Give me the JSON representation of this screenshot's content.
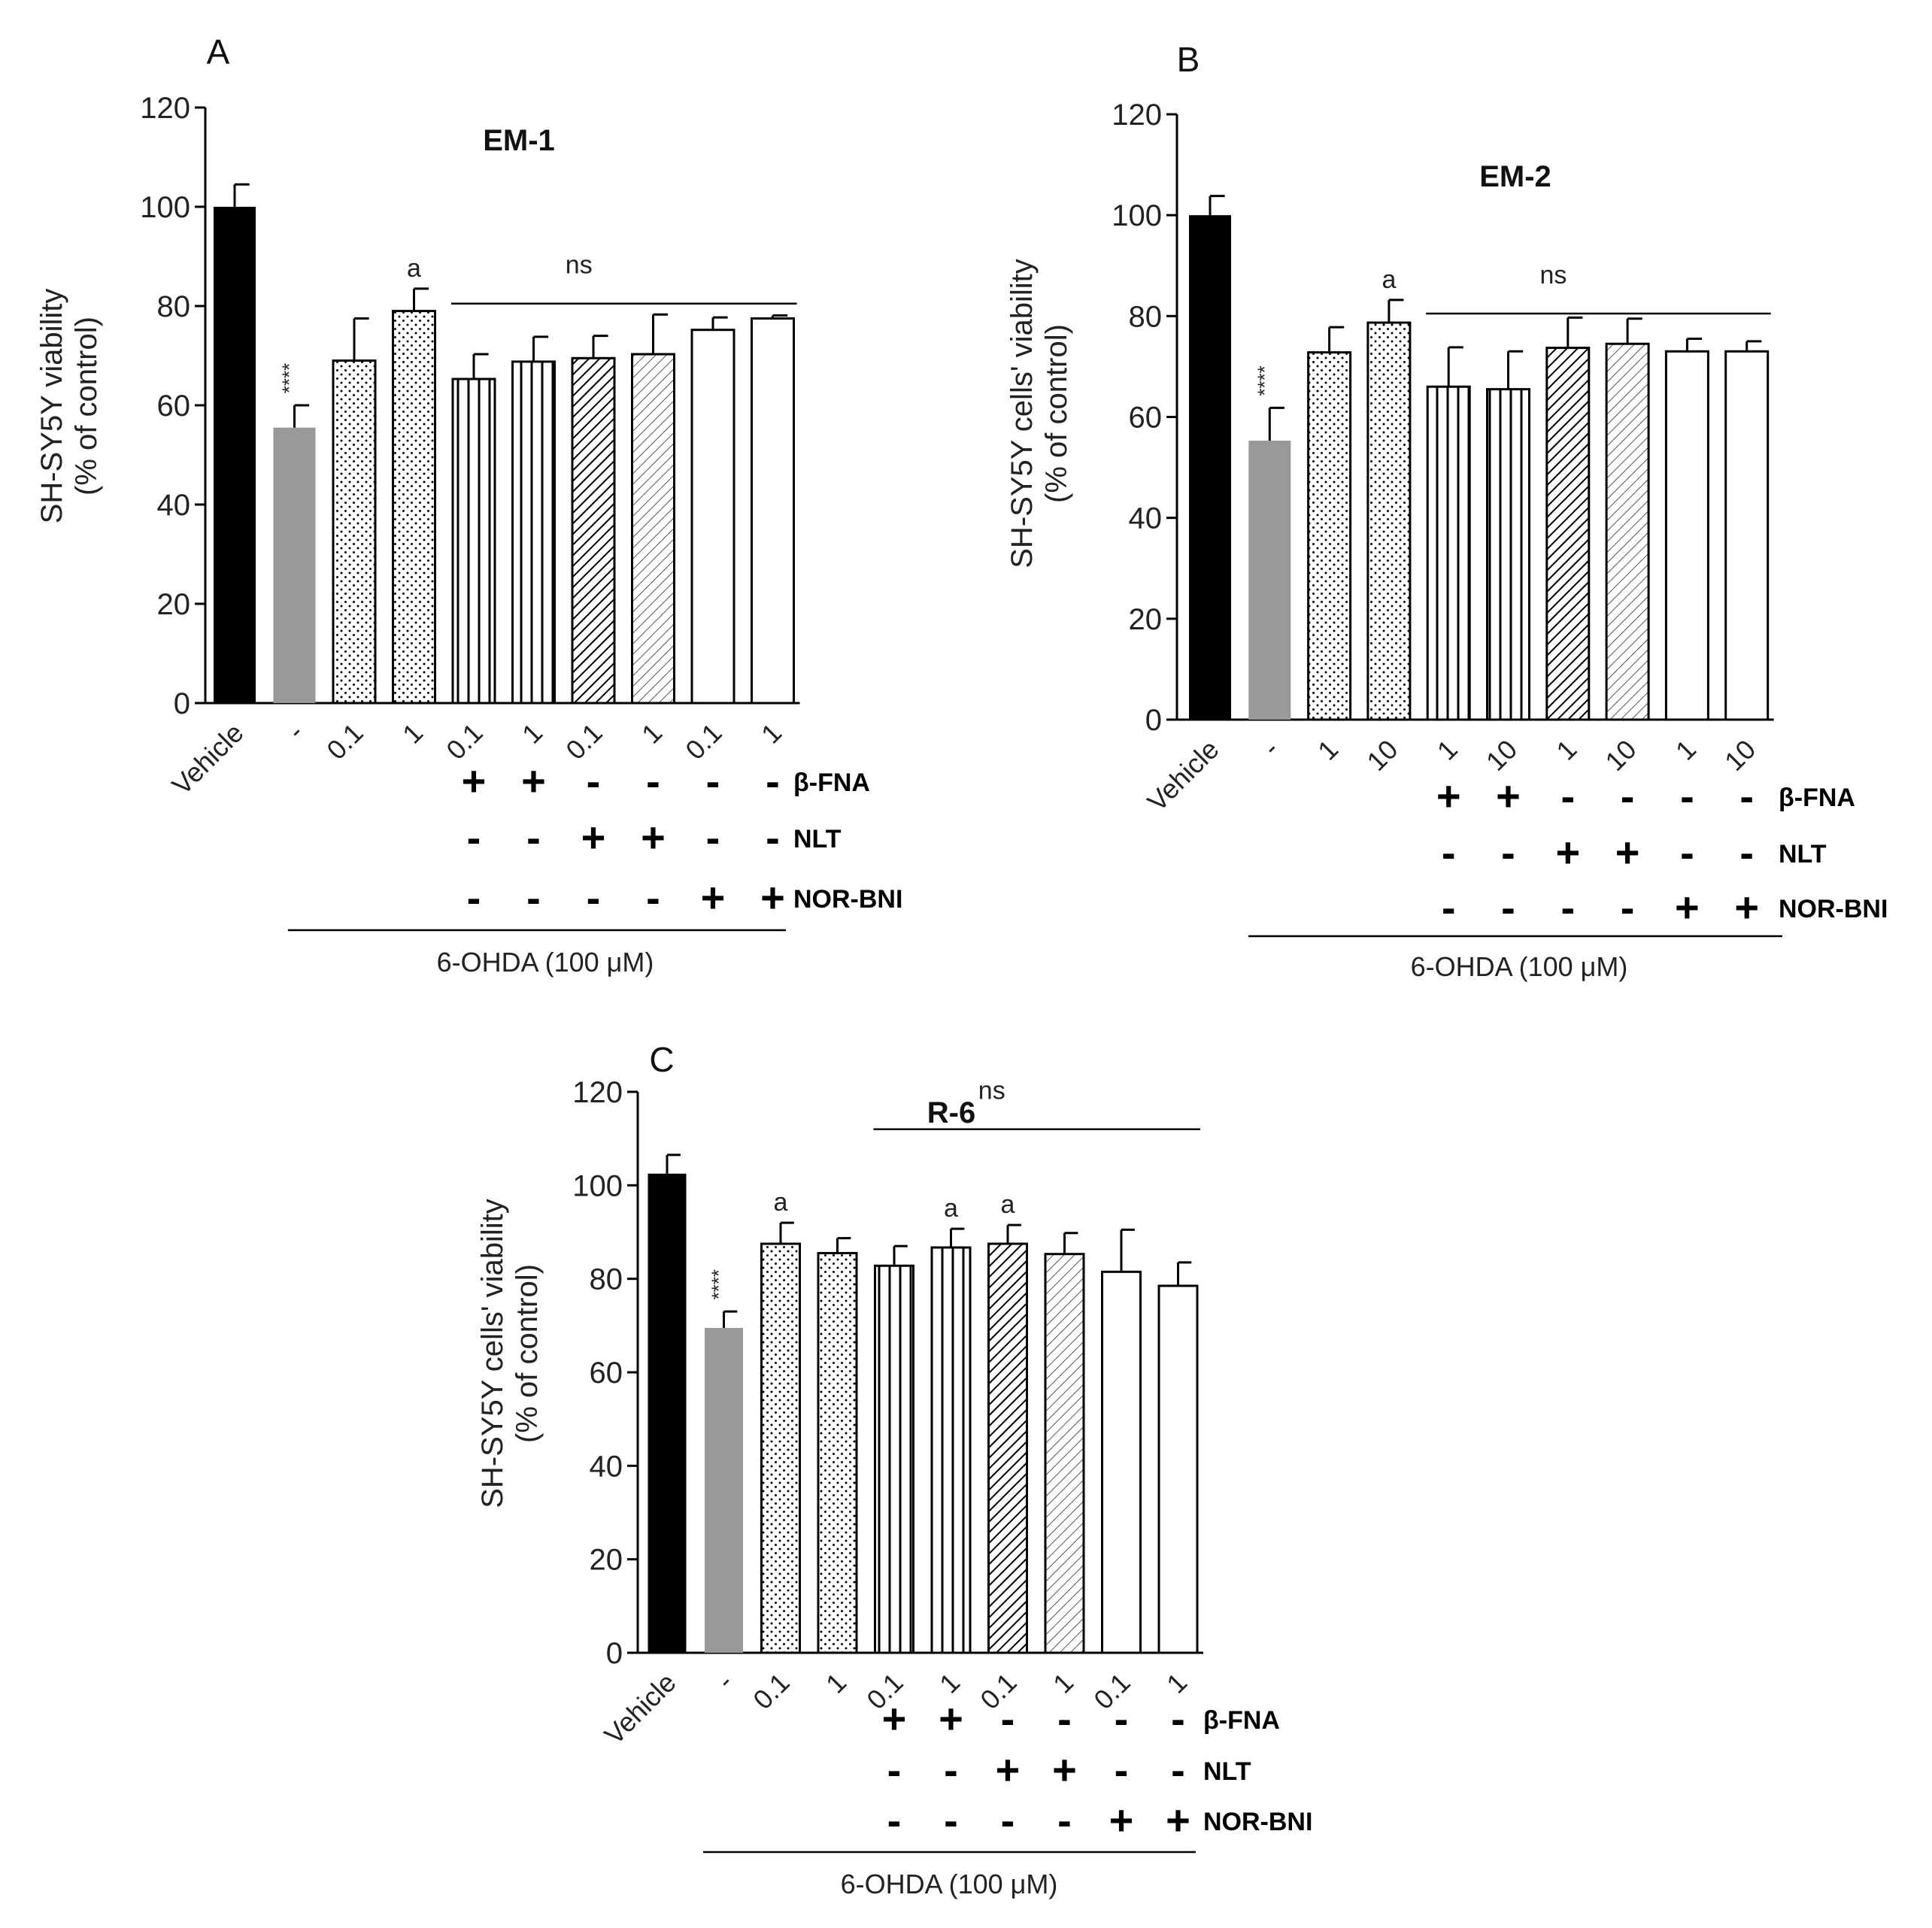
{
  "group_label": "6-OHDA (100 μM)",
  "patterns_meaning": [
    "solid-black",
    "solid-gray",
    "dots",
    "dots",
    "vertical",
    "vertical",
    "diag-dense",
    "diag-fine",
    "open",
    "open"
  ],
  "colors": {
    "vehicle": "#000000",
    "ohda": "#999999",
    "stroke": "#000000"
  },
  "chart_data": [
    {
      "panel": "A",
      "type": "bar",
      "title": "EM-1",
      "ylabel_line1": "SH-SY5Y viability",
      "ylabel_line2": "(% of control)",
      "ylim": [
        0,
        120
      ],
      "yticks": [
        0,
        20,
        40,
        60,
        80,
        100,
        120
      ],
      "categories": [
        "Vehicle",
        "-",
        "0.1",
        "1",
        "0.1",
        "1",
        "0.1",
        "1",
        "0.1",
        "1"
      ],
      "values": [
        100,
        55.5,
        69,
        79,
        65.3,
        68.8,
        69.5,
        70.3,
        75.2,
        77.5
      ],
      "errors": [
        4.5,
        4.5,
        8.5,
        4.5,
        5,
        5,
        4.5,
        8,
        2.5,
        0.6
      ],
      "annotations": [
        "",
        "****",
        "",
        "a",
        "",
        "",
        "",
        "",
        "",
        ""
      ],
      "ns_label": "ns",
      "b_fna": [
        "+",
        "+",
        "-",
        "-",
        "-",
        "-"
      ],
      "nlt": [
        "-",
        "-",
        "+",
        "+",
        "-",
        "-"
      ],
      "nor_bni": [
        "-",
        "-",
        "-",
        "-",
        "+",
        "+"
      ],
      "drug_names": [
        "β-FNA",
        "NLT",
        "NOR-BNI"
      ]
    },
    {
      "panel": "B",
      "type": "bar",
      "title": "EM-2",
      "ylabel_line1": "SH-SY5Y cells' viability",
      "ylabel_line2": "(% of control)",
      "ylim": [
        0,
        120
      ],
      "yticks": [
        0,
        20,
        40,
        60,
        80,
        100,
        120
      ],
      "categories": [
        "Vehicle",
        "-",
        "1",
        "10",
        "1",
        "10",
        "1",
        "10",
        "1",
        "10"
      ],
      "values": [
        100,
        55.3,
        72.8,
        78.7,
        66,
        65.5,
        73.7,
        74.5,
        73,
        73
      ],
      "errors": [
        3.8,
        6.5,
        5,
        4.5,
        7.8,
        7.5,
        6,
        5,
        2.5,
        2
      ],
      "annotations": [
        "",
        "****",
        "",
        "a",
        "",
        "",
        "",
        "",
        "",
        ""
      ],
      "ns_label": "ns",
      "b_fna": [
        "+",
        "+",
        "-",
        "-",
        "-",
        "-"
      ],
      "nlt": [
        "-",
        "-",
        "+",
        "+",
        "-",
        "-"
      ],
      "nor_bni": [
        "-",
        "-",
        "-",
        "-",
        "+",
        "+"
      ],
      "drug_names": [
        "β-FNA",
        "NLT",
        "NOR-BNI"
      ]
    },
    {
      "panel": "C",
      "type": "bar",
      "title": "R-6",
      "ylabel_line1": "SH-SY5Y cells' viability",
      "ylabel_line2": "(% of control)",
      "ylim": [
        0,
        120
      ],
      "yticks": [
        0,
        20,
        40,
        60,
        80,
        100,
        120
      ],
      "categories": [
        "Vehicle",
        "-",
        "0.1",
        "1",
        "0.1",
        "1",
        "0.1",
        "1",
        "0.1",
        "1"
      ],
      "values": [
        102.5,
        69.5,
        87.5,
        85.5,
        82.8,
        86.7,
        87.5,
        85.3,
        81.5,
        78.5
      ],
      "errors": [
        4,
        3.5,
        4.5,
        3.2,
        4.2,
        4,
        4,
        4.5,
        9,
        5
      ],
      "annotations": [
        "",
        "****",
        "a",
        "",
        "",
        "a",
        "a",
        "",
        "",
        ""
      ],
      "ns_label": "ns",
      "b_fna": [
        "+",
        "+",
        "-",
        "-",
        "-",
        "-"
      ],
      "nlt": [
        "-",
        "-",
        "+",
        "+",
        "-",
        "-"
      ],
      "nor_bni": [
        "-",
        "-",
        "-",
        "-",
        "+",
        "+"
      ],
      "drug_names": [
        "β-FNA",
        "NLT",
        "NOR-BNI"
      ]
    }
  ]
}
